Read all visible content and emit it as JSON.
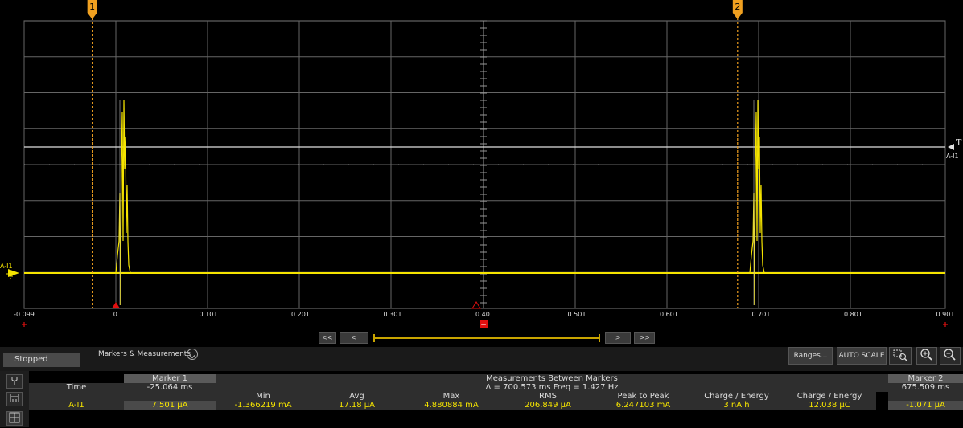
{
  "plot": {
    "x_axis": {
      "ticks": [
        "-0.099",
        "0",
        "0.101",
        "0.201",
        "0.301",
        "0.401",
        "0.501",
        "0.601",
        "0.701",
        "0.801",
        "0.901"
      ],
      "range": [
        -0.099,
        0.901
      ]
    },
    "channel_label": "A-I1",
    "trigger_label": "T",
    "trigger_channel": "A-I1",
    "marker1_label": "1",
    "marker2_label": "2",
    "marker1_position_s": -0.025064,
    "marker2_position_s": 0.675509,
    "trace_color": "#f5e400",
    "marker_color": "#f0a020"
  },
  "nav": {
    "first_label": "<<",
    "prev_label": "<",
    "next_label": ">",
    "last_label": ">>"
  },
  "toolbar": {
    "status": "Stopped",
    "markers_measurements_label": "Markers & Measurements",
    "ranges_label": "Ranges...",
    "autoscale_label": "AUTO SCALE",
    "zoom_box_icon": "zoom-box-icon",
    "zoom_in_icon": "zoom-in-icon",
    "zoom_out_icon": "zoom-out-icon"
  },
  "measurements": {
    "time_label": "Time",
    "marker1_header": "Marker 1",
    "marker1_time": "-25.064 ms",
    "between_header": "Measurements Between Markers",
    "delta_text": "Δ = 700.573 ms   Freq = 1.427 Hz",
    "marker2_header": "Marker 2",
    "marker2_time": "675.509 ms",
    "columns": [
      "Min",
      "Avg",
      "Max",
      "RMS",
      "Peak to Peak",
      "Charge / Energy",
      "Charge / Energy"
    ],
    "channel": "A-I1",
    "marker1_value": "7.501 µA",
    "values": [
      "-1.366219 mA",
      "17.18 µA",
      "4.880884 mA",
      "206.849 µA",
      "6.247103 mA",
      "3 nA h",
      "12.038 µC"
    ],
    "marker2_value": "-1.071 µA"
  }
}
